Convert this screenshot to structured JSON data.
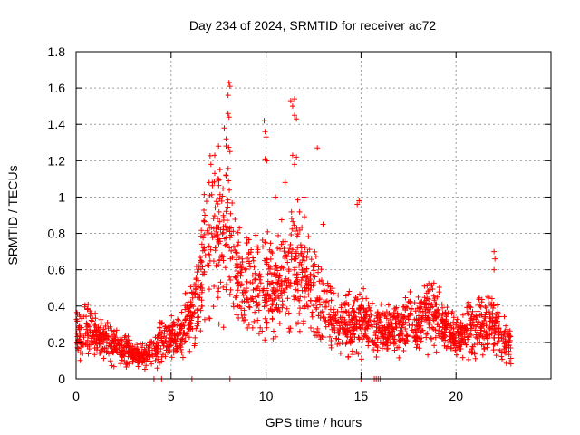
{
  "chart_data": {
    "type": "scatter",
    "title": "Day 234 of 2024, SRMTID for receiver ac72",
    "xlabel": "GPS time / hours",
    "ylabel": "SRMTID / TECUs",
    "xlim": [
      0,
      25
    ],
    "ylim": [
      0,
      1.8
    ],
    "x_ticks": [
      0,
      5,
      10,
      15,
      20
    ],
    "x_tick_labels": [
      "0",
      "5",
      "10",
      "15",
      "20"
    ],
    "y_ticks": [
      0,
      0.2,
      0.4,
      0.6,
      0.8,
      1.0,
      1.2,
      1.4,
      1.6,
      1.8
    ],
    "y_tick_labels": [
      "0",
      "0.2",
      "0.4",
      "0.6",
      "0.8",
      "1",
      "1.2",
      "1.4",
      "1.6",
      "1.8"
    ],
    "grid": true,
    "marker": "+",
    "color": "#ff0000",
    "trend": [
      {
        "x": 0.0,
        "y": 0.22
      },
      {
        "x": 0.5,
        "y": 0.26
      },
      {
        "x": 1.0,
        "y": 0.24
      },
      {
        "x": 1.5,
        "y": 0.21
      },
      {
        "x": 2.0,
        "y": 0.19
      },
      {
        "x": 2.5,
        "y": 0.17
      },
      {
        "x": 3.0,
        "y": 0.14
      },
      {
        "x": 3.5,
        "y": 0.12
      },
      {
        "x": 4.0,
        "y": 0.14
      },
      {
        "x": 4.5,
        "y": 0.22
      },
      {
        "x": 5.0,
        "y": 0.24
      },
      {
        "x": 5.5,
        "y": 0.25
      },
      {
        "x": 6.0,
        "y": 0.33
      },
      {
        "x": 6.5,
        "y": 0.5
      },
      {
        "x": 7.0,
        "y": 0.75
      },
      {
        "x": 7.5,
        "y": 0.82
      },
      {
        "x": 8.0,
        "y": 0.8
      },
      {
        "x": 8.5,
        "y": 0.62
      },
      {
        "x": 9.0,
        "y": 0.55
      },
      {
        "x": 9.5,
        "y": 0.5
      },
      {
        "x": 10.0,
        "y": 0.5
      },
      {
        "x": 10.5,
        "y": 0.52
      },
      {
        "x": 11.0,
        "y": 0.55
      },
      {
        "x": 11.5,
        "y": 0.65
      },
      {
        "x": 12.0,
        "y": 0.6
      },
      {
        "x": 12.5,
        "y": 0.45
      },
      {
        "x": 13.0,
        "y": 0.4
      },
      {
        "x": 13.5,
        "y": 0.35
      },
      {
        "x": 14.0,
        "y": 0.3
      },
      {
        "x": 14.5,
        "y": 0.3
      },
      {
        "x": 15.0,
        "y": 0.32
      },
      {
        "x": 15.5,
        "y": 0.3
      },
      {
        "x": 16.0,
        "y": 0.25
      },
      {
        "x": 16.5,
        "y": 0.25
      },
      {
        "x": 17.0,
        "y": 0.27
      },
      {
        "x": 17.5,
        "y": 0.3
      },
      {
        "x": 18.0,
        "y": 0.33
      },
      {
        "x": 18.5,
        "y": 0.36
      },
      {
        "x": 19.0,
        "y": 0.35
      },
      {
        "x": 19.5,
        "y": 0.28
      },
      {
        "x": 20.0,
        "y": 0.22
      },
      {
        "x": 20.5,
        "y": 0.25
      },
      {
        "x": 21.0,
        "y": 0.3
      },
      {
        "x": 21.5,
        "y": 0.28
      },
      {
        "x": 22.0,
        "y": 0.3
      },
      {
        "x": 22.5,
        "y": 0.22
      },
      {
        "x": 22.8,
        "y": 0.18
      }
    ],
    "outliers": [
      {
        "x": 8.05,
        "y": 1.63
      },
      {
        "x": 8.1,
        "y": 1.61
      },
      {
        "x": 8.0,
        "y": 1.56
      },
      {
        "x": 8.0,
        "y": 1.46
      },
      {
        "x": 8.05,
        "y": 1.44
      },
      {
        "x": 7.8,
        "y": 1.38
      },
      {
        "x": 7.5,
        "y": 1.28
      },
      {
        "x": 7.3,
        "y": 1.23
      },
      {
        "x": 7.9,
        "y": 1.32
      },
      {
        "x": 8.1,
        "y": 1.25
      },
      {
        "x": 7.1,
        "y": 1.18
      },
      {
        "x": 7.3,
        "y": 1.13
      },
      {
        "x": 9.9,
        "y": 1.42
      },
      {
        "x": 9.95,
        "y": 1.36
      },
      {
        "x": 10.0,
        "y": 1.33
      },
      {
        "x": 9.95,
        "y": 1.21
      },
      {
        "x": 10.05,
        "y": 1.2
      },
      {
        "x": 11.5,
        "y": 1.54
      },
      {
        "x": 11.3,
        "y": 1.53
      },
      {
        "x": 11.4,
        "y": 1.5
      },
      {
        "x": 11.5,
        "y": 1.45
      },
      {
        "x": 11.6,
        "y": 1.43
      },
      {
        "x": 11.4,
        "y": 1.23
      },
      {
        "x": 11.6,
        "y": 1.22
      },
      {
        "x": 11.5,
        "y": 1.18
      },
      {
        "x": 12.7,
        "y": 1.27
      },
      {
        "x": 14.9,
        "y": 0.98
      },
      {
        "x": 14.8,
        "y": 0.96
      },
      {
        "x": 22.0,
        "y": 0.7
      },
      {
        "x": 22.05,
        "y": 0.66
      },
      {
        "x": 22.0,
        "y": 0.6
      },
      {
        "x": 7.0,
        "y": 1.08
      },
      {
        "x": 11.0,
        "y": 1.08
      },
      {
        "x": 10.5,
        "y": 1.0
      },
      {
        "x": 12.0,
        "y": 1.0
      },
      {
        "x": 13.0,
        "y": 0.85
      }
    ],
    "zero_points": [
      {
        "x": 4.1,
        "y": 0
      },
      {
        "x": 4.5,
        "y": 0
      },
      {
        "x": 6.1,
        "y": 0
      },
      {
        "x": 8.1,
        "y": 0
      },
      {
        "x": 15.0,
        "y": 0
      },
      {
        "x": 15.7,
        "y": 0
      },
      {
        "x": 15.8,
        "y": 0
      },
      {
        "x": 15.9,
        "y": 0
      },
      {
        "x": 16.0,
        "y": 0
      }
    ],
    "data_range_hours": [
      0,
      22.9
    ],
    "sampled_point_count": 2200
  }
}
